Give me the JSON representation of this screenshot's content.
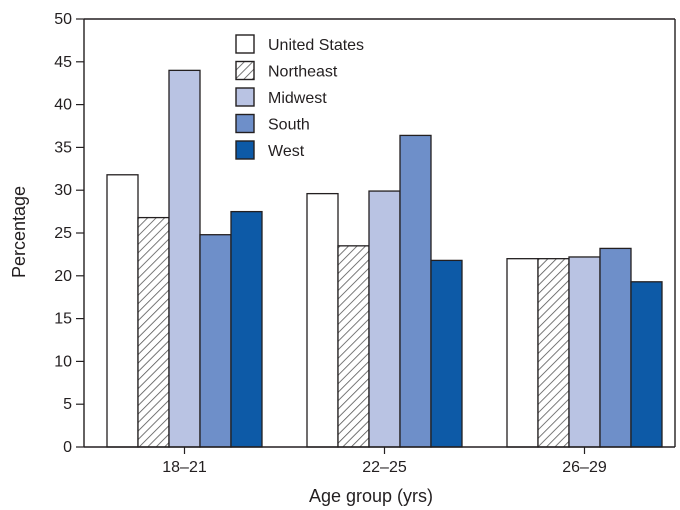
{
  "chart_data": {
    "type": "bar",
    "xlabel": "Age group (yrs)",
    "ylabel": "Percentage",
    "ylim": [
      0,
      50
    ],
    "yticks": [
      0,
      5,
      10,
      15,
      20,
      25,
      30,
      35,
      40,
      45,
      50
    ],
    "categories": [
      "18–21",
      "22–25",
      "26–29"
    ],
    "series": [
      {
        "name": "United States",
        "values": [
          31.8,
          29.6,
          22.0
        ],
        "fill": "#ffffff",
        "pattern": "none"
      },
      {
        "name": "Northeast",
        "values": [
          26.8,
          23.5,
          22.0
        ],
        "fill": "#ffffff",
        "pattern": "hatch"
      },
      {
        "name": "Midwest",
        "values": [
          44.0,
          29.9,
          22.2
        ],
        "fill": "#b9c3e3",
        "pattern": "none"
      },
      {
        "name": "South",
        "values": [
          24.8,
          36.4,
          23.2
        ],
        "fill": "#6e8fc9",
        "pattern": "none"
      },
      {
        "name": "West",
        "values": [
          27.5,
          21.8,
          19.3
        ],
        "fill": "#0d5aa7",
        "pattern": "none"
      }
    ],
    "legend_position": "top-center",
    "grid": false
  },
  "colors": {
    "axis": "#231f20",
    "bar_stroke": "#231f20",
    "hatch_line": "#555555"
  }
}
